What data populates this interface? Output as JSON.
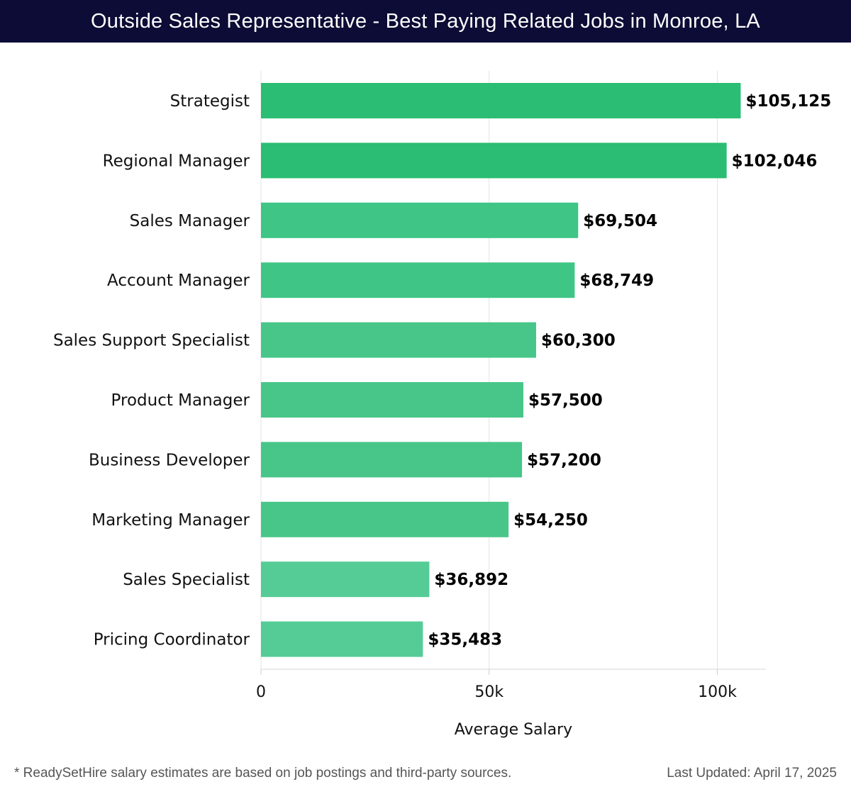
{
  "header": {
    "title": "Outside Sales Representative - Best Paying Related Jobs in Monroe, LA"
  },
  "chart_data": {
    "type": "bar",
    "orientation": "horizontal",
    "title": "Outside Sales Representative - Best Paying Related Jobs in Monroe, LA",
    "xlabel": "Average Salary",
    "ylabel": "",
    "xlim": [
      0,
      110000
    ],
    "xticks": [
      0,
      50000,
      100000
    ],
    "xtick_labels": [
      "0",
      "50k",
      "100k"
    ],
    "grid": true,
    "categories": [
      "Strategist",
      "Regional Manager",
      "Sales Manager",
      "Account Manager",
      "Sales Support Specialist",
      "Product Manager",
      "Business Developer",
      "Marketing Manager",
      "Sales Specialist",
      "Pricing Coordinator"
    ],
    "values": [
      105125,
      102046,
      69504,
      68749,
      60300,
      57500,
      57200,
      54250,
      36892,
      35483
    ],
    "value_labels": [
      "$105,125",
      "$102,046",
      "$69,504",
      "$68,749",
      "$60,300",
      "$57,500",
      "$57,200",
      "$54,250",
      "$36,892",
      "$35,483"
    ],
    "bar_colors": [
      "#2bbd73",
      "#2bbd73",
      "#3fc586",
      "#3fc586",
      "#48c689",
      "#48c689",
      "#48c689",
      "#48c689",
      "#55cc96",
      "#55cc96"
    ]
  },
  "footer": {
    "note": "* ReadySetHire salary estimates are based on job postings and third-party sources.",
    "updated": "Last Updated: April 17, 2025"
  }
}
